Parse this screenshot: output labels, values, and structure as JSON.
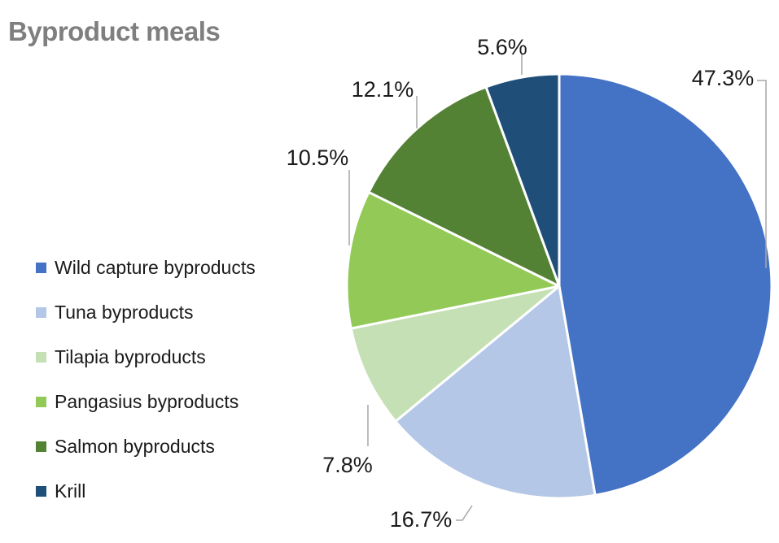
{
  "chart_data": {
    "type": "pie",
    "title": "Byproduct meals",
    "legend_position": "left",
    "slices": [
      {
        "name": "Wild capture byproducts",
        "value": 47.3,
        "label": "47.3%",
        "color": "#4472c4"
      },
      {
        "name": "Tuna byproducts",
        "value": 16.7,
        "label": "16.7%",
        "color": "#b4c7e7"
      },
      {
        "name": "Tilapia byproducts",
        "value": 7.8,
        "label": "7.8%",
        "color": "#c5e0b4"
      },
      {
        "name": "Pangasius byproducts",
        "value": 10.5,
        "label": "10.5%",
        "color": "#92c957"
      },
      {
        "name": "Salmon byproducts",
        "value": 12.1,
        "label": "12.1%",
        "color": "#548235"
      },
      {
        "name": "Krill",
        "value": 5.6,
        "label": "5.6%",
        "color": "#1f4e79"
      }
    ]
  }
}
